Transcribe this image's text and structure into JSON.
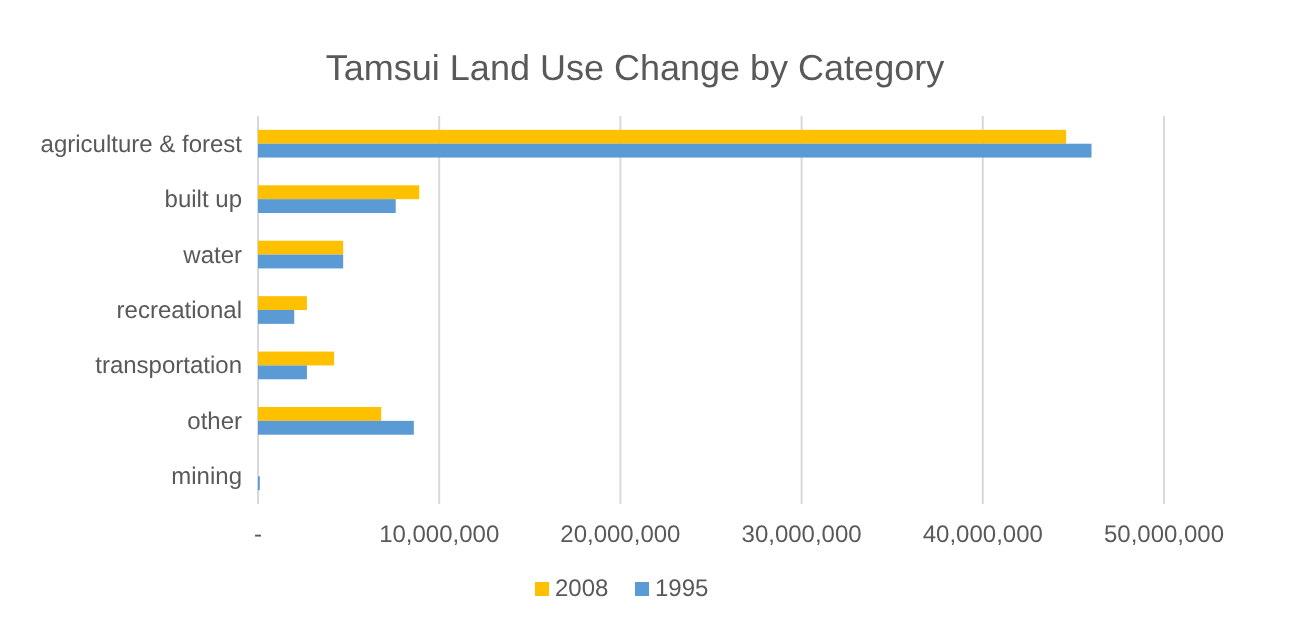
{
  "chart_data": {
    "type": "bar",
    "orientation": "horizontal",
    "title": "Tamsui Land Use Change by Category",
    "categories": [
      "agriculture & forest",
      "built up",
      "water",
      "recreational",
      "transportation",
      "other",
      "mining"
    ],
    "series": [
      {
        "name": "2008",
        "color": "#ffc000",
        "values": [
          44600000,
          8900000,
          4700000,
          2700000,
          4200000,
          6800000,
          0
        ]
      },
      {
        "name": "1995",
        "color": "#5b9bd5",
        "values": [
          46000000,
          7600000,
          4700000,
          2000000,
          2700000,
          8600000,
          100000
        ]
      }
    ],
    "xlim": [
      0,
      50000000
    ],
    "xticks": [
      {
        "value": 0,
        "label": "-"
      },
      {
        "value": 10000000,
        "label": "10,000,000"
      },
      {
        "value": 20000000,
        "label": "20,000,000"
      },
      {
        "value": 30000000,
        "label": "30,000,000"
      },
      {
        "value": 40000000,
        "label": "40,000,000"
      },
      {
        "value": 50000000,
        "label": "50,000,000"
      }
    ],
    "grid": "x",
    "legend": "bottom"
  }
}
